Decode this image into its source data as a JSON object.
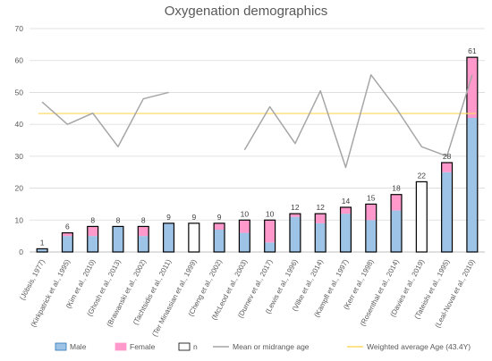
{
  "chart_data": {
    "type": "bar",
    "title": "Oxygenation demographics",
    "ylim": [
      0,
      70
    ],
    "yticks": [
      0,
      10,
      20,
      30,
      40,
      50,
      60,
      70
    ],
    "grid": true,
    "legend_position": "bottom",
    "categories": [
      "(Jöbsis, 1977)",
      "(Kirkpatrick et al., 1995)",
      "(Kim et al., 2010)",
      "(Ghosh et al., 2013)",
      "(Brawanski et al., 2002)",
      "(Tachtsidis et al., 2011)",
      "(Ter Minassian et al., 1999)",
      "(Cheng et al., 2002)",
      "(McLeod et al., 2003)",
      "(Durnev et al., 2017)",
      "(Lewis et al., 1996)",
      "(Vilke et al., 2014)",
      "(Kampfl et al., 1997)",
      "(Kerr et al., 1998)",
      "(Rosenthal et al., 2014)",
      "(Davies et al., 2019)",
      "(Tateishi et al., 1995)",
      "(Leal-Noval et al., 2010)"
    ],
    "series": [
      {
        "name": "Male",
        "values": [
          1,
          5,
          5,
          8,
          5,
          9,
          0,
          7,
          6,
          3,
          11,
          9,
          12,
          10,
          13,
          0,
          25,
          42
        ],
        "color": "#9dc3e6",
        "stroke": "#2e75b6"
      },
      {
        "name": "Female",
        "values": [
          0,
          1,
          3,
          0,
          3,
          0,
          0,
          2,
          4,
          7,
          1,
          3,
          2,
          5,
          5,
          0,
          3,
          19
        ],
        "color": "#ff99cc",
        "stroke": "#ff99cc"
      },
      {
        "name": "n",
        "values": [
          1,
          6,
          8,
          8,
          8,
          9,
          9,
          9,
          10,
          10,
          12,
          12,
          14,
          15,
          18,
          22,
          28,
          61
        ],
        "color": "#ffffff",
        "stroke": "#000000"
      },
      {
        "name": "Mean or midrange age",
        "values": [
          47,
          40,
          43.5,
          33,
          48,
          50,
          null,
          null,
          32,
          45.5,
          34,
          50.5,
          26.5,
          55.5,
          45,
          33,
          30,
          55.5
        ],
        "color": "#a6a6a6"
      },
      {
        "name": "Weighted average Age (43.4Y)",
        "values": [
          43.4,
          43.4,
          43.4,
          43.4,
          43.4,
          43.4,
          43.4,
          43.4,
          43.4,
          43.4,
          43.4,
          43.4,
          43.4,
          43.4,
          43.4,
          43.4,
          43.4,
          43.4
        ],
        "color": "#ffd966"
      }
    ]
  }
}
